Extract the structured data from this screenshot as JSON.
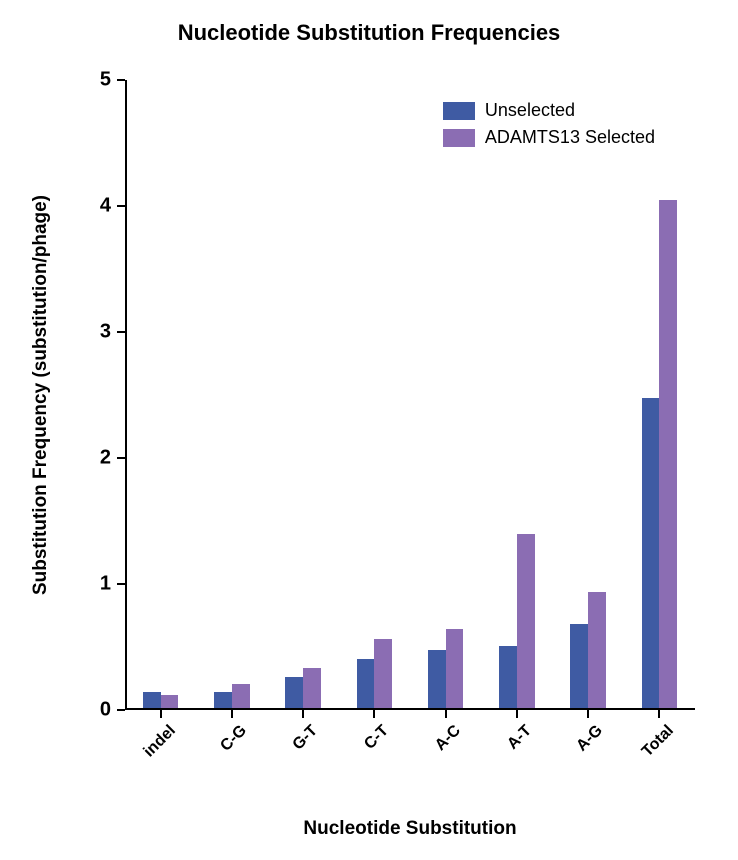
{
  "chart": {
    "type": "bar",
    "title": "Nucleotide Substitution Frequencies",
    "title_fontsize": 22,
    "title_fontweight": "bold",
    "background_color": "#ffffff",
    "axis_color": "#000000",
    "axis_linewidth": 2,
    "x": {
      "label": "Nucleotide Substitution",
      "label_fontsize": 19,
      "categories": [
        "indel",
        "C-G",
        "G-T",
        "C-T",
        "A-C",
        "A-T",
        "A-G",
        "Total"
      ],
      "tick_fontsize": 16,
      "tick_rotation_deg": -45
    },
    "y": {
      "label": "Substitution Frequency (substitution/phage)",
      "label_fontsize": 19,
      "min": 0,
      "max": 5,
      "tick_step": 1,
      "tick_fontsize": 20
    },
    "series": [
      {
        "name": "Unselected",
        "color": "#3f5ba3",
        "values": [
          0.13,
          0.13,
          0.25,
          0.39,
          0.46,
          0.49,
          0.67,
          2.46
        ]
      },
      {
        "name": "ADAMTS13 Selected",
        "color": "#8b6db3",
        "values": [
          0.1,
          0.19,
          0.32,
          0.55,
          0.63,
          1.38,
          0.92,
          4.03
        ]
      }
    ],
    "bar": {
      "group_width_ratio": 0.5,
      "gap_between_series": 0
    },
    "legend": {
      "position": "top-right",
      "fontsize": 18,
      "swatch_w": 32,
      "swatch_h": 18
    }
  }
}
